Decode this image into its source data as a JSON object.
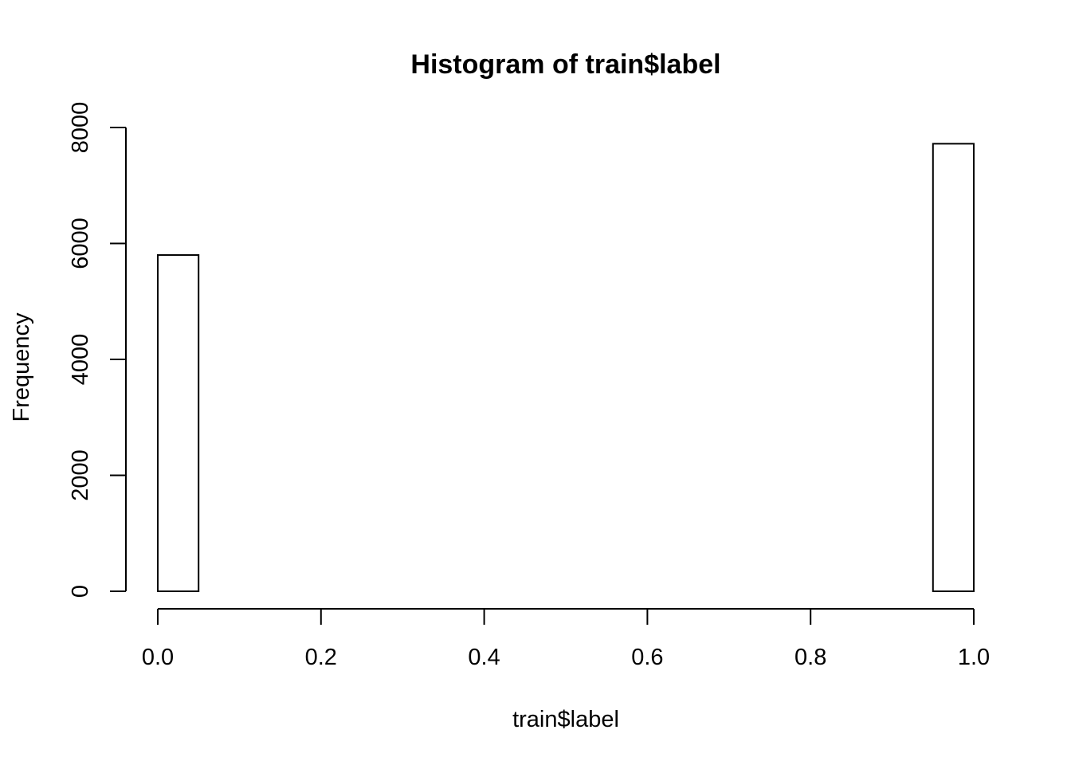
{
  "chart_data": {
    "type": "bar",
    "title": "Histogram of train$label",
    "xlabel": "train$label",
    "ylabel": "Frequency",
    "xlim": [
      0,
      1
    ],
    "ylim": [
      0,
      8000
    ],
    "grid": false,
    "legend": "none",
    "x_ticks": [
      "0.0",
      "0.2",
      "0.4",
      "0.6",
      "0.8",
      "1.0"
    ],
    "y_ticks": [
      "0",
      "2000",
      "4000",
      "6000",
      "8000"
    ],
    "bins": [
      {
        "x0": 0.0,
        "x1": 0.05,
        "count": 5800
      },
      {
        "x0": 0.05,
        "x1": 0.1,
        "count": 0
      },
      {
        "x0": 0.1,
        "x1": 0.15,
        "count": 0
      },
      {
        "x0": 0.15,
        "x1": 0.2,
        "count": 0
      },
      {
        "x0": 0.2,
        "x1": 0.25,
        "count": 0
      },
      {
        "x0": 0.25,
        "x1": 0.3,
        "count": 0
      },
      {
        "x0": 0.3,
        "x1": 0.35,
        "count": 0
      },
      {
        "x0": 0.35,
        "x1": 0.4,
        "count": 0
      },
      {
        "x0": 0.4,
        "x1": 0.45,
        "count": 0
      },
      {
        "x0": 0.45,
        "x1": 0.5,
        "count": 0
      },
      {
        "x0": 0.5,
        "x1": 0.55,
        "count": 0
      },
      {
        "x0": 0.55,
        "x1": 0.6,
        "count": 0
      },
      {
        "x0": 0.6,
        "x1": 0.65,
        "count": 0
      },
      {
        "x0": 0.65,
        "x1": 0.7,
        "count": 0
      },
      {
        "x0": 0.7,
        "x1": 0.75,
        "count": 0
      },
      {
        "x0": 0.75,
        "x1": 0.8,
        "count": 0
      },
      {
        "x0": 0.8,
        "x1": 0.85,
        "count": 0
      },
      {
        "x0": 0.85,
        "x1": 0.9,
        "count": 0
      },
      {
        "x0": 0.9,
        "x1": 0.95,
        "count": 0
      },
      {
        "x0": 0.95,
        "x1": 1.0,
        "count": 7720
      }
    ]
  }
}
